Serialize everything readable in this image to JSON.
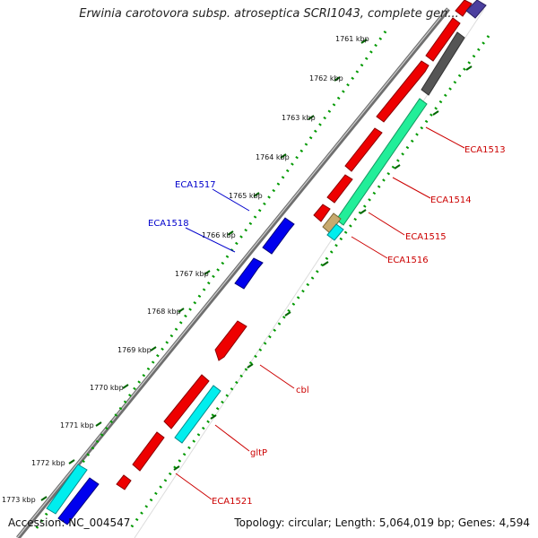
{
  "title": "Erwinia carotovora subsp. atroseptica SCRI1043, complete gen...",
  "footer": {
    "accession": "Accession: NC_004547",
    "summary": "Topology: circular; Length: 5,064,019 bp; Genes: 4,594"
  },
  "ticks": [
    "1761 kbp",
    "1762 kbp",
    "1763 kbp",
    "1764 kbp",
    "1765 kbp",
    "1766 kbp",
    "1767 kbp",
    "1768 kbp",
    "1769 kbp",
    "1770 kbp",
    "1771 kbp",
    "1772 kbp",
    "1773 kbp"
  ],
  "gene_labels": {
    "eca1517": "ECA1517",
    "eca1518": "ECA1518",
    "eca1513": "ECA1513",
    "eca1514": "ECA1514",
    "eca1515": "ECA1515",
    "eca1516": "ECA1516",
    "cbl": "cbl",
    "gltp": "gltP",
    "eca1521": "ECA1521"
  },
  "colors": {
    "forward_gene": "#0000ee",
    "reverse_gene": "#ee0000",
    "cyan_track": "#00e5ee",
    "green_track": "#22ee99",
    "gray_track": "#555555",
    "backbone": "#888888",
    "ticks": "#006600",
    "label_blue": "#0000cc",
    "label_red": "#cc0000"
  }
}
